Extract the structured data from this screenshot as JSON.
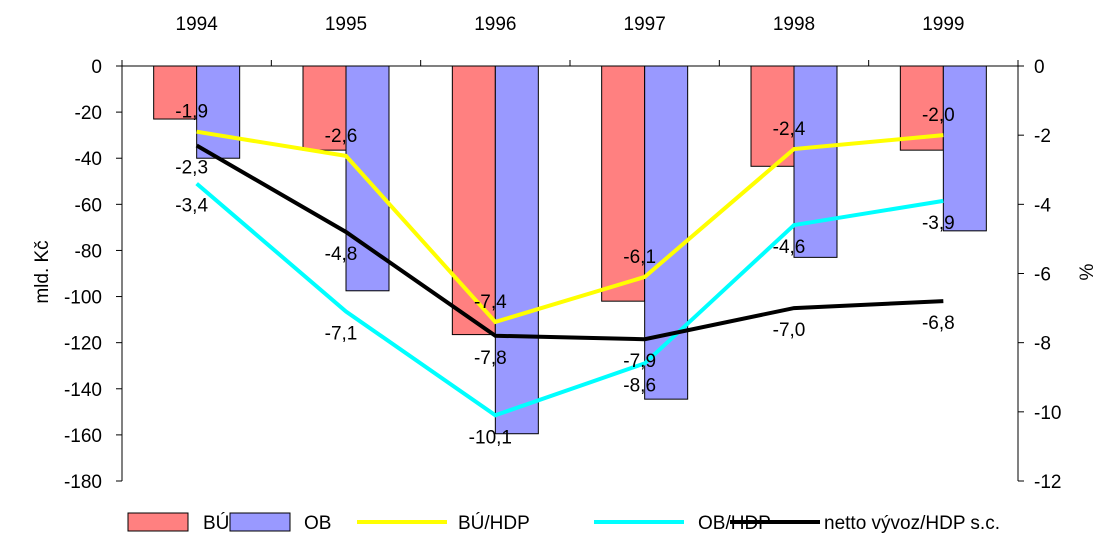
{
  "chart_data": {
    "type": "bar",
    "categories": [
      "1994",
      "1995",
      "1996",
      "1997",
      "1998",
      "1999"
    ],
    "ylabel_left": "mld. Kč",
    "ylabel_right": "%",
    "ylim_left": [
      -180,
      0
    ],
    "ylim_right": [
      -12,
      0
    ],
    "yticks_left": [
      "0",
      "-20",
      "-40",
      "-60",
      "-80",
      "-100",
      "-120",
      "-140",
      "-160",
      "-180"
    ],
    "yticks_right": [
      "0",
      "-2",
      "-4",
      "-6",
      "-8",
      "-10",
      "-12"
    ],
    "x_axis_position": "top",
    "grid": false,
    "legend_position": "bottom",
    "series": [
      {
        "name": "BÚ",
        "kind": "bar",
        "axis": "left",
        "color": "#ff8080",
        "values": [
          -23,
          -36.5,
          -116.5,
          -102,
          -43.5,
          -36.5
        ]
      },
      {
        "name": "OB",
        "kind": "bar",
        "axis": "left",
        "color": "#9999ff",
        "values": [
          -40,
          -97.5,
          -159.5,
          -144.5,
          -83,
          -71.5
        ]
      },
      {
        "name": "BÚ/HDP",
        "kind": "line",
        "axis": "right",
        "color": "#ffff00",
        "values": [
          -1.9,
          -2.6,
          -7.4,
          -6.1,
          -2.4,
          -2.0
        ],
        "labels": [
          "-1,9",
          "-2,6",
          "-7,4",
          "-6,1",
          "-2,4",
          "-2,0"
        ]
      },
      {
        "name": "OB/HDP",
        "kind": "line",
        "axis": "right",
        "color": "#00ffff",
        "values": [
          -3.4,
          -7.1,
          -10.1,
          -8.6,
          -4.6,
          -3.9
        ],
        "labels": [
          "-3,4",
          "-7,1",
          "-10,1",
          "-8,6",
          "-4,6",
          "-3,9"
        ]
      },
      {
        "name": "netto vývoz/HDP s.c.",
        "kind": "line",
        "axis": "right",
        "color": "#000000",
        "values": [
          -2.3,
          -4.8,
          -7.8,
          -7.9,
          -7.0,
          -6.8
        ],
        "labels": [
          "-2,3",
          "-4,8",
          "-7,8",
          "-7,9",
          "-7,0",
          "-6,8"
        ]
      }
    ]
  }
}
